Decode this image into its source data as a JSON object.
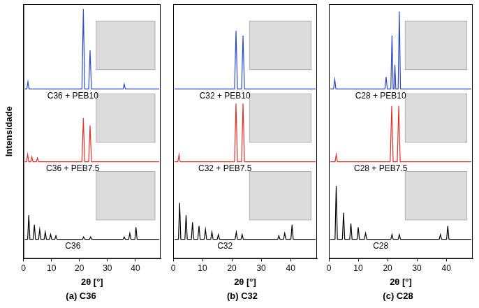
{
  "chart_data": [
    {
      "type": "line",
      "title": "(a) C36",
      "x_label": "2θ [°]",
      "y_label": "Intensidade",
      "xlim": [
        0,
        49
      ],
      "xticks": [
        0,
        10,
        20,
        30,
        40
      ],
      "ylim": [
        0,
        105
      ],
      "tick_labels": "x",
      "series": [
        {
          "name": "C36 + PEB10",
          "color": "#2a48c8",
          "x": [
            0.5,
            1.2,
            1.6,
            2.0,
            20.9,
            21.4,
            21.9,
            23.3,
            23.8,
            24.3,
            35.6,
            36.0,
            36.4,
            48.5
          ],
          "values": [
            70,
            70,
            73,
            70,
            70,
            103,
            70,
            70,
            86,
            70,
            70,
            72,
            70,
            70
          ]
        },
        {
          "name": "C36 + PEB7.5",
          "color": "#e0302a",
          "x": [
            0.5,
            1.1,
            1.5,
            1.9,
            2.6,
            3.0,
            3.4,
            4.6,
            5.0,
            5.4,
            20.9,
            21.4,
            21.9,
            23.3,
            23.8,
            24.3,
            48.5
          ],
          "values": [
            40,
            40,
            43,
            40,
            40,
            42,
            40,
            40,
            41.5,
            40,
            40,
            58,
            40,
            40,
            55,
            40,
            40
          ]
        },
        {
          "name": "C36",
          "color": "#000000",
          "x": [
            0.5,
            1.5,
            1.9,
            2.3,
            3.5,
            3.9,
            4.3,
            5.4,
            5.8,
            6.2,
            7.4,
            7.8,
            8.2,
            9.3,
            9.7,
            10.1,
            11.2,
            11.6,
            12.0,
            21.1,
            21.5,
            21.9,
            23.6,
            24.0,
            24.4,
            35.6,
            36.0,
            36.4,
            37.6,
            38.0,
            38.4,
            39.8,
            40.2,
            40.6,
            48.5
          ],
          "values": [
            8,
            8,
            18,
            8,
            8,
            14,
            8,
            8,
            12,
            8,
            8,
            11,
            8,
            8,
            10,
            8,
            8,
            9.5,
            8,
            8,
            9,
            8,
            8,
            9,
            8,
            8,
            9,
            8,
            8,
            10.5,
            8,
            8,
            13,
            8,
            8
          ]
        }
      ]
    },
    {
      "type": "line",
      "title": "(b) C32",
      "x_label": "2θ [°]",
      "xlim": [
        0,
        49
      ],
      "xticks": [
        0,
        10,
        20,
        30,
        40
      ],
      "ylim": [
        0,
        105
      ],
      "tick_labels": "x",
      "series": [
        {
          "name": "C32 + PEB10",
          "color": "#2a48c8",
          "x": [
            0.5,
            20.9,
            21.4,
            21.9,
            23.3,
            23.8,
            24.3,
            48.5
          ],
          "values": [
            70,
            70,
            94,
            70,
            70,
            92,
            70,
            70
          ]
        },
        {
          "name": "C32 + PEB7.5",
          "color": "#e0302a",
          "x": [
            0.5,
            1.6,
            2.0,
            2.4,
            20.9,
            21.4,
            21.9,
            23.3,
            23.8,
            24.3,
            48.5
          ],
          "values": [
            40,
            40,
            43,
            40,
            40,
            64,
            40,
            40,
            64,
            40,
            40
          ]
        },
        {
          "name": "C32",
          "color": "#000000",
          "x": [
            0.5,
            1.8,
            2.2,
            2.6,
            4.0,
            4.4,
            4.8,
            6.2,
            6.6,
            7.0,
            8.4,
            8.8,
            9.2,
            10.6,
            11.0,
            11.4,
            12.8,
            13.2,
            13.6,
            15.0,
            15.4,
            15.8,
            21.1,
            21.5,
            21.9,
            23.1,
            23.5,
            23.9,
            35.6,
            36.0,
            36.4,
            37.6,
            38.0,
            38.4,
            40.1,
            40.5,
            40.9,
            48.5
          ],
          "values": [
            8,
            8,
            23,
            8,
            8,
            18,
            8,
            8,
            15,
            8,
            8,
            13.5,
            8,
            8,
            12,
            8,
            8,
            11,
            8,
            8,
            10,
            8,
            8,
            11,
            8,
            8,
            10,
            8,
            8,
            9.5,
            8,
            8,
            10.5,
            8,
            8,
            14,
            8,
            8
          ]
        }
      ]
    },
    {
      "type": "line",
      "title": "(c) C28",
      "x_label": "2θ [°]",
      "xlim": [
        0,
        49
      ],
      "xticks": [
        0,
        10,
        20,
        30,
        40
      ],
      "ylim": [
        0,
        105
      ],
      "tick_labels": "x",
      "series": [
        {
          "name": "C28 + PEB10",
          "color": "#2a48c8",
          "x": [
            0.5,
            1.6,
            2.0,
            2.4,
            19.1,
            19.5,
            19.9,
            21.1,
            21.5,
            21.9,
            22.2,
            22.5,
            22.8,
            23.6,
            24.0,
            24.4,
            48.5
          ],
          "values": [
            70,
            70,
            74,
            70,
            70,
            75,
            70,
            70,
            92,
            70,
            70,
            80,
            70,
            70,
            102,
            70,
            70
          ]
        },
        {
          "name": "C28 + PEB7.5",
          "color": "#e0302a",
          "x": [
            0.5,
            2.1,
            2.5,
            2.9,
            20.9,
            21.4,
            21.9,
            23.3,
            23.8,
            24.3,
            48.5
          ],
          "values": [
            40,
            40,
            43,
            40,
            40,
            63,
            40,
            40,
            63,
            40,
            40
          ]
        },
        {
          "name": "C28",
          "color": "#000000",
          "x": [
            0.5,
            2.1,
            2.5,
            2.9,
            4.6,
            5.0,
            5.4,
            7.1,
            7.5,
            7.9,
            9.6,
            10.0,
            10.4,
            12.1,
            12.5,
            12.9,
            21.1,
            21.5,
            21.9,
            23.6,
            24.0,
            24.4,
            37.6,
            38.0,
            38.4,
            40.1,
            40.5,
            40.9,
            48.5
          ],
          "values": [
            8,
            8,
            30,
            8,
            8,
            19,
            8,
            8,
            14.5,
            8,
            8,
            13,
            8,
            8,
            10.5,
            8,
            8,
            10,
            8,
            8,
            10,
            8,
            8,
            10,
            8,
            8,
            13.5,
            8,
            8
          ]
        }
      ]
    }
  ]
}
